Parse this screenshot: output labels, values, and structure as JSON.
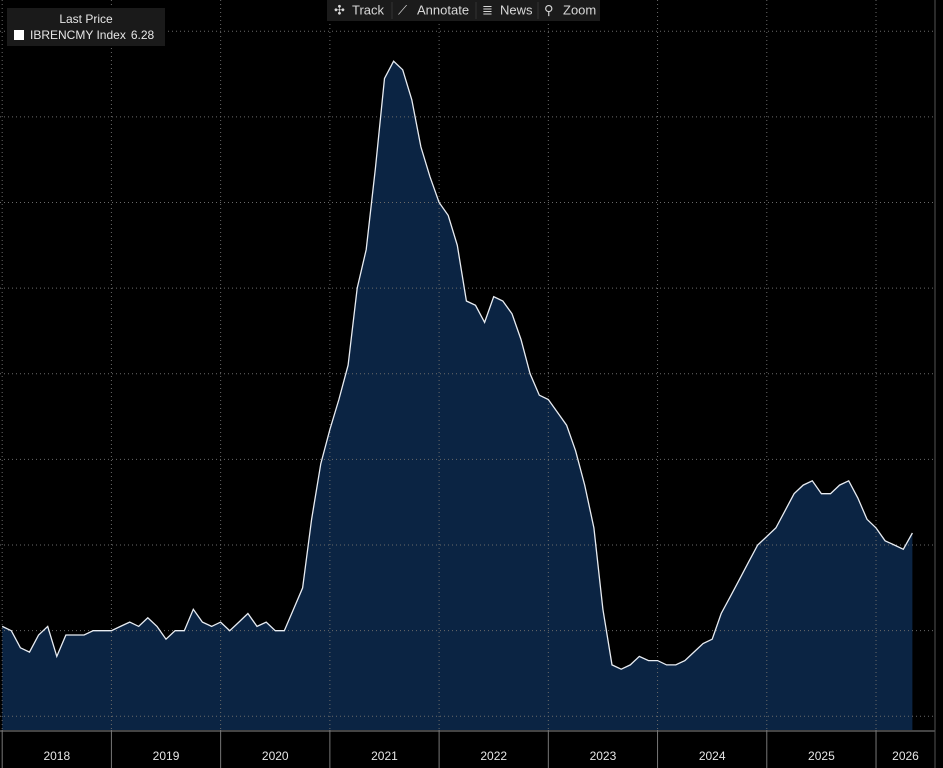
{
  "toolbar": [
    "Track",
    "Annotate",
    "News",
    "Zoom"
  ],
  "chart_data": {
    "type": "area",
    "legend_title": "Last Price",
    "series": [
      {
        "name": "IBRENCMY Index",
        "color": "#e8ecf2",
        "fill": "#0b2443",
        "values": [
          4.1,
          4.0,
          3.6,
          3.5,
          3.9,
          4.1,
          3.4,
          3.9,
          3.9,
          3.9,
          4.0,
          4.0,
          4.0,
          4.1,
          4.2,
          4.1,
          4.3,
          4.1,
          3.8,
          4.0,
          4.0,
          4.5,
          4.2,
          4.1,
          4.2,
          4.0,
          4.2,
          4.4,
          4.1,
          4.2,
          4.0,
          4.0,
          4.5,
          5.0,
          6.6,
          7.9,
          8.7,
          9.4,
          10.2,
          12.0,
          12.9,
          14.8,
          16.9,
          17.3,
          17.1,
          16.4,
          15.3,
          14.6,
          14.0,
          13.7,
          13.0,
          11.7,
          11.6,
          11.2,
          11.8,
          11.7,
          11.4,
          10.8,
          10.0,
          9.5,
          9.4,
          9.1,
          8.8,
          8.2,
          7.4,
          6.4,
          4.5,
          3.2,
          3.1,
          3.2,
          3.4,
          3.3,
          3.3,
          3.2,
          3.2,
          3.3,
          3.5,
          3.7,
          3.8,
          4.4,
          4.8,
          5.2,
          5.6,
          6.0,
          6.2,
          6.4,
          6.8,
          7.2,
          7.4,
          7.5,
          7.2,
          7.2,
          7.4,
          7.5,
          7.1,
          6.6,
          6.4,
          6.1,
          6.0,
          5.9,
          6.28
        ]
      }
    ],
    "x": [
      2018,
      2018.083,
      2018.167,
      2018.25,
      2018.333,
      2018.417,
      2018.5,
      2018.583,
      2018.667,
      2018.75,
      2018.833,
      2018.917,
      2019,
      2019.083,
      2019.167,
      2019.25,
      2019.333,
      2019.417,
      2019.5,
      2019.583,
      2019.667,
      2019.75,
      2019.833,
      2019.917,
      2020,
      2020.083,
      2020.167,
      2020.25,
      2020.333,
      2020.417,
      2020.5,
      2020.583,
      2020.667,
      2020.75,
      2020.833,
      2020.917,
      2021,
      2021.083,
      2021.167,
      2021.25,
      2021.333,
      2021.417,
      2021.5,
      2021.583,
      2021.667,
      2021.75,
      2021.833,
      2021.917,
      2022,
      2022.083,
      2022.167,
      2022.25,
      2022.333,
      2022.417,
      2022.5,
      2022.583,
      2022.667,
      2022.75,
      2022.833,
      2022.917,
      2023,
      2023.083,
      2023.167,
      2023.25,
      2023.333,
      2023.417,
      2023.5,
      2023.583,
      2023.667,
      2023.75,
      2023.833,
      2023.917,
      2024,
      2024.083,
      2024.167,
      2024.25,
      2024.333,
      2024.417,
      2024.5,
      2024.583,
      2024.667,
      2024.75,
      2024.833,
      2024.917,
      2025,
      2025.083,
      2025.167,
      2025.25,
      2025.333,
      2025.417,
      2025.5,
      2025.583,
      2025.667,
      2025.75,
      2025.833,
      2025.917,
      2026,
      2026.083,
      2026.167,
      2026.25,
      2026.333
    ],
    "xlim": [
      2017.98,
      2026.54
    ],
    "xticks": [
      2018,
      2019,
      2020,
      2021,
      2022,
      2023,
      2024,
      2025,
      2026
    ],
    "ylim": [
      1.68,
      18.73
    ],
    "ygrid": [
      2,
      4,
      6,
      8,
      10,
      12,
      14,
      16,
      18
    ],
    "grid": true
  }
}
